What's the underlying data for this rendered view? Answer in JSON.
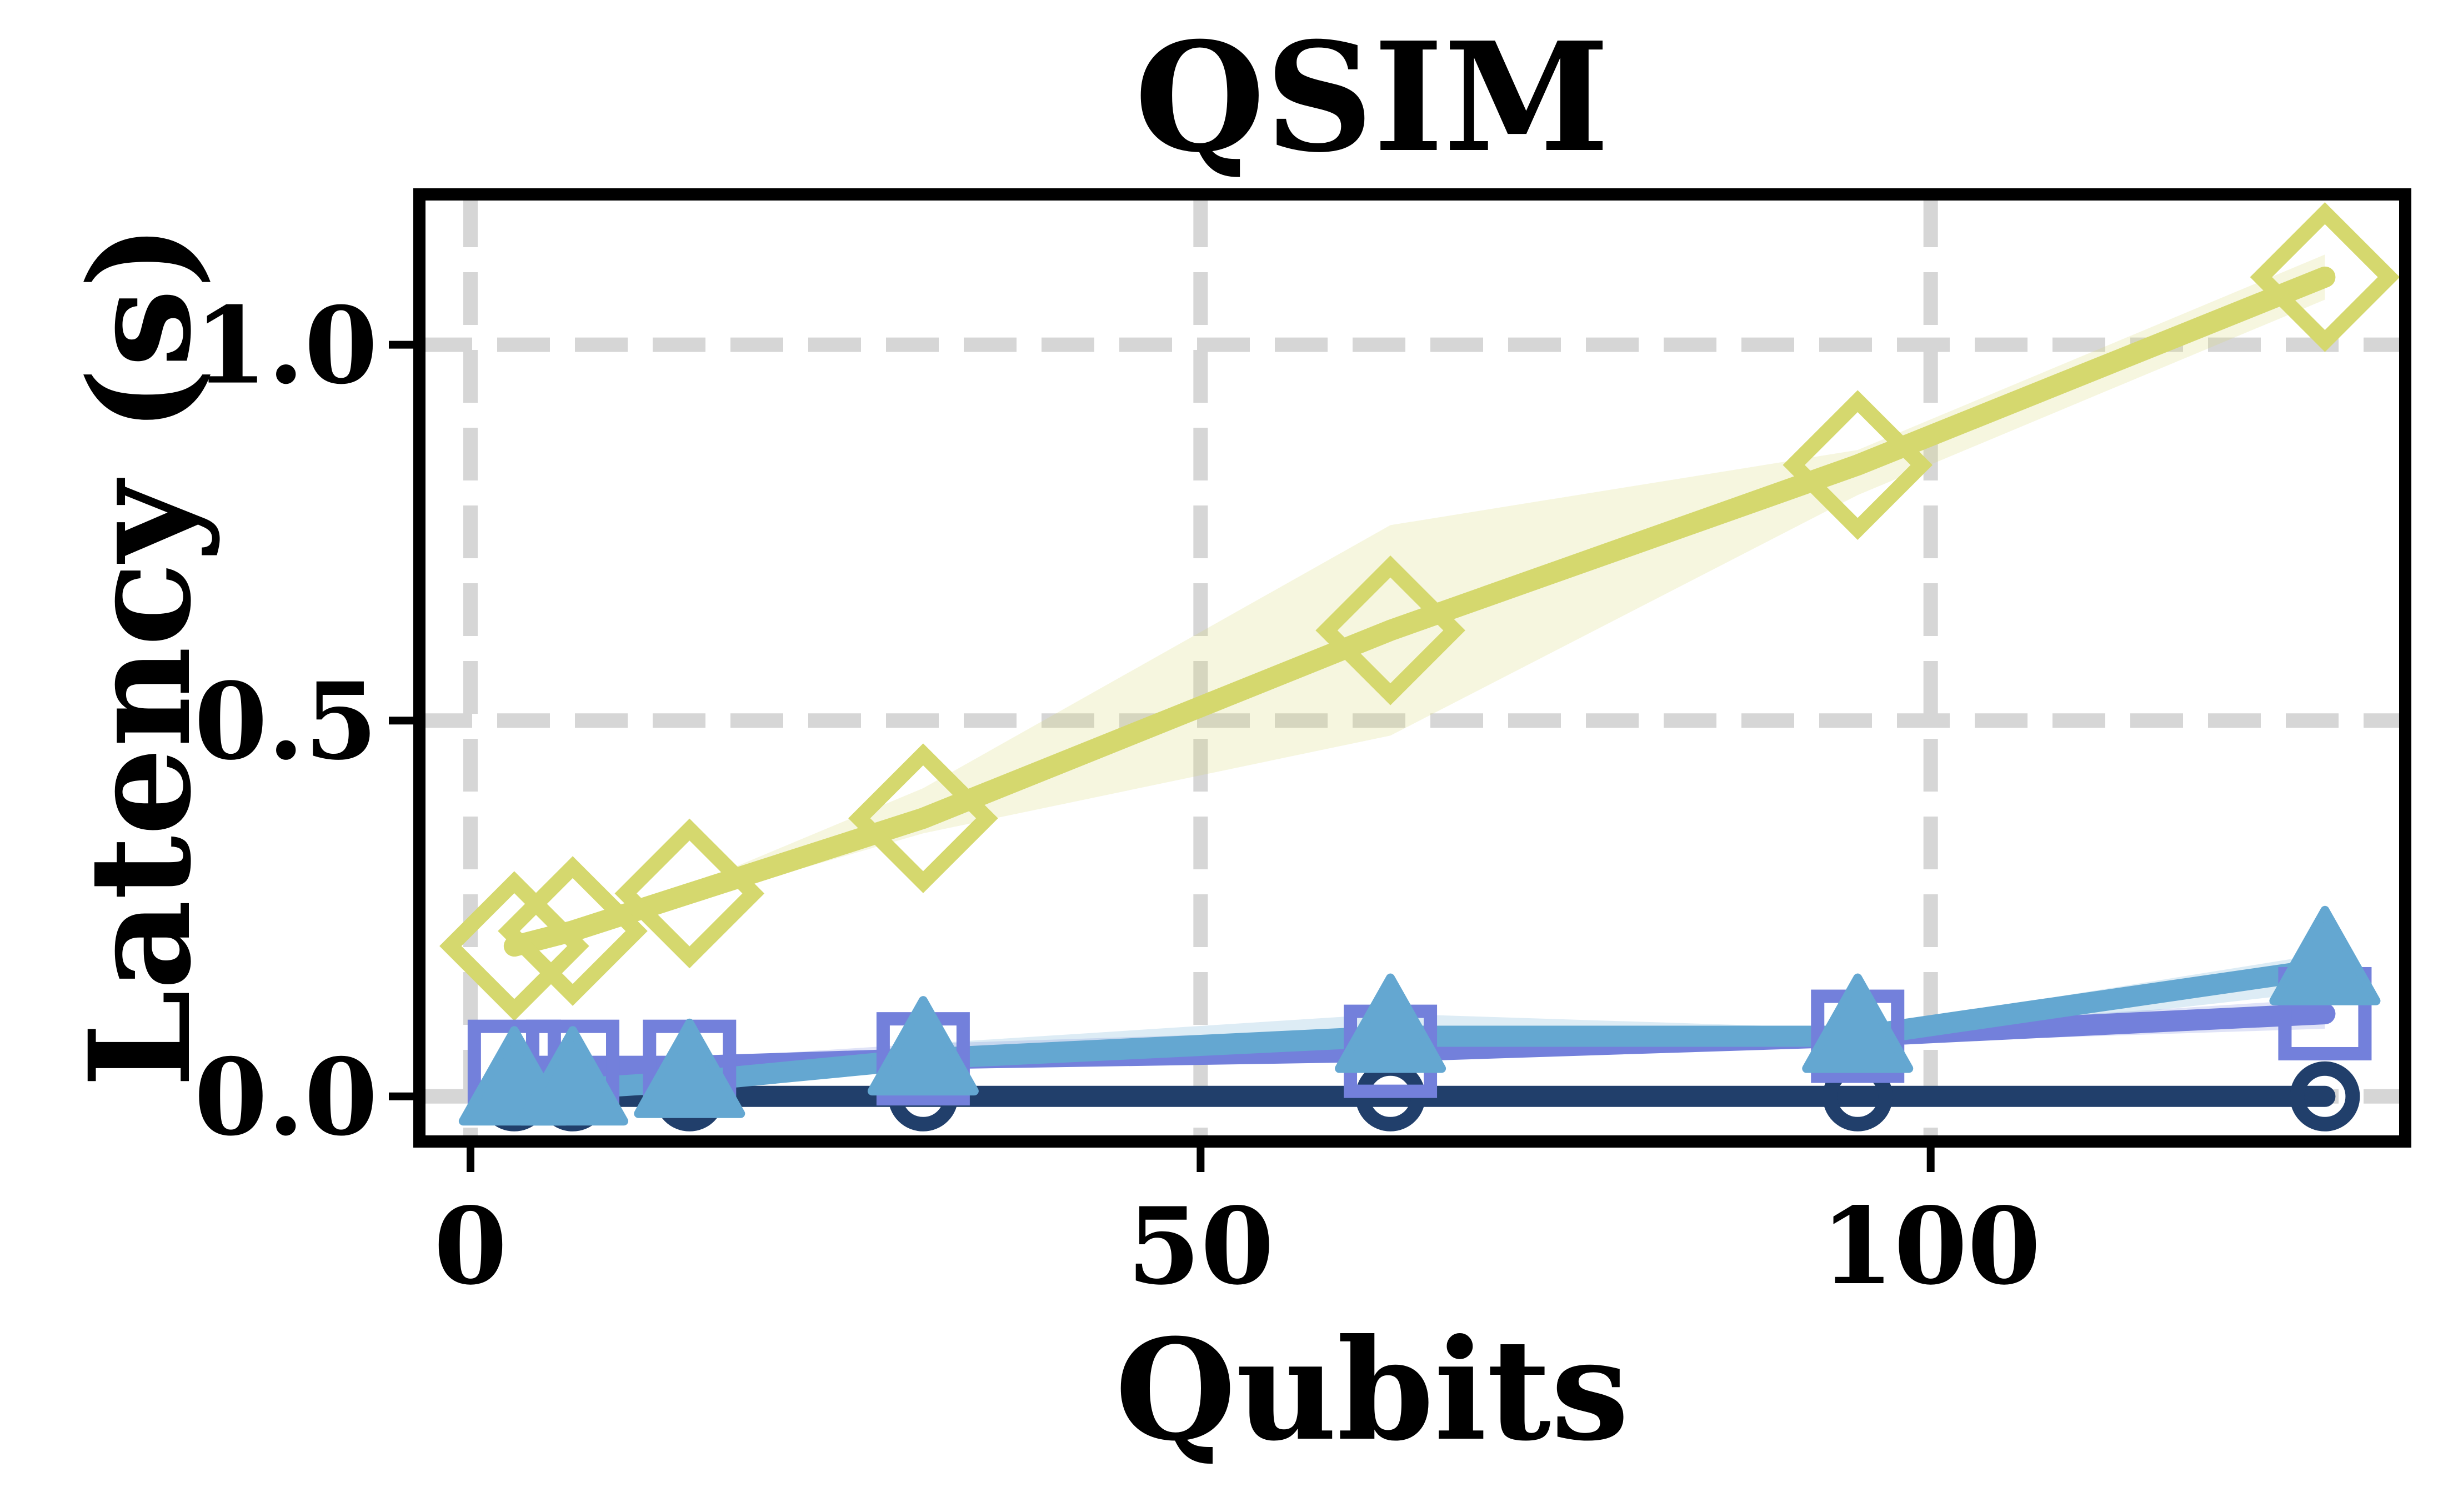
{
  "chart_data": {
    "type": "line",
    "title": "QSIM",
    "xlabel": "Qubits",
    "ylabel": "Latency (s)",
    "xlim": [
      -3.5,
      132.5
    ],
    "ylim": [
      -0.06,
      1.2
    ],
    "xticks": [
      0,
      50,
      100
    ],
    "xtick_labels": [
      "0",
      "50",
      "100"
    ],
    "yticks": [
      0.0,
      0.5,
      1.0
    ],
    "ytick_labels": [
      "0.0",
      "0.5",
      "1.0"
    ],
    "grid": true,
    "x": [
      3,
      7,
      15,
      31,
      63,
      95,
      127
    ],
    "series": [
      {
        "marker": "circle",
        "color": "#213f6b",
        "values": [
          0.0,
          0.0,
          0.0,
          0.0,
          0.0,
          0.0,
          0.0
        ],
        "lower": [
          0.0,
          0.0,
          0.0,
          0.0,
          0.0,
          0.0,
          0.0
        ],
        "upper": [
          0.0,
          0.0,
          0.0,
          0.0,
          0.0,
          0.0,
          0.0
        ]
      },
      {
        "marker": "square",
        "color": "#7380db",
        "values": [
          0.04,
          0.04,
          0.04,
          0.05,
          0.06,
          0.08,
          0.11
        ],
        "lower": [
          0.03,
          0.03,
          0.03,
          0.04,
          0.05,
          0.07,
          0.09
        ],
        "upper": [
          0.05,
          0.05,
          0.05,
          0.07,
          0.09,
          0.09,
          0.13
        ]
      },
      {
        "marker": "triangle",
        "color": "#64a7d1",
        "values": [
          0.01,
          0.01,
          0.02,
          0.05,
          0.08,
          0.08,
          0.17
        ],
        "lower": [
          0.0,
          0.0,
          0.01,
          0.04,
          0.06,
          0.07,
          0.14
        ],
        "upper": [
          0.02,
          0.02,
          0.03,
          0.07,
          0.11,
          0.09,
          0.19
        ]
      },
      {
        "marker": "diamond",
        "color": "#d5d86e",
        "values": [
          0.2,
          0.22,
          0.27,
          0.37,
          0.62,
          0.84,
          1.09
        ],
        "lower": [
          0.19,
          0.21,
          0.26,
          0.35,
          0.48,
          0.8,
          1.06
        ],
        "upper": [
          0.21,
          0.23,
          0.28,
          0.41,
          0.76,
          0.86,
          1.12
        ]
      }
    ]
  }
}
